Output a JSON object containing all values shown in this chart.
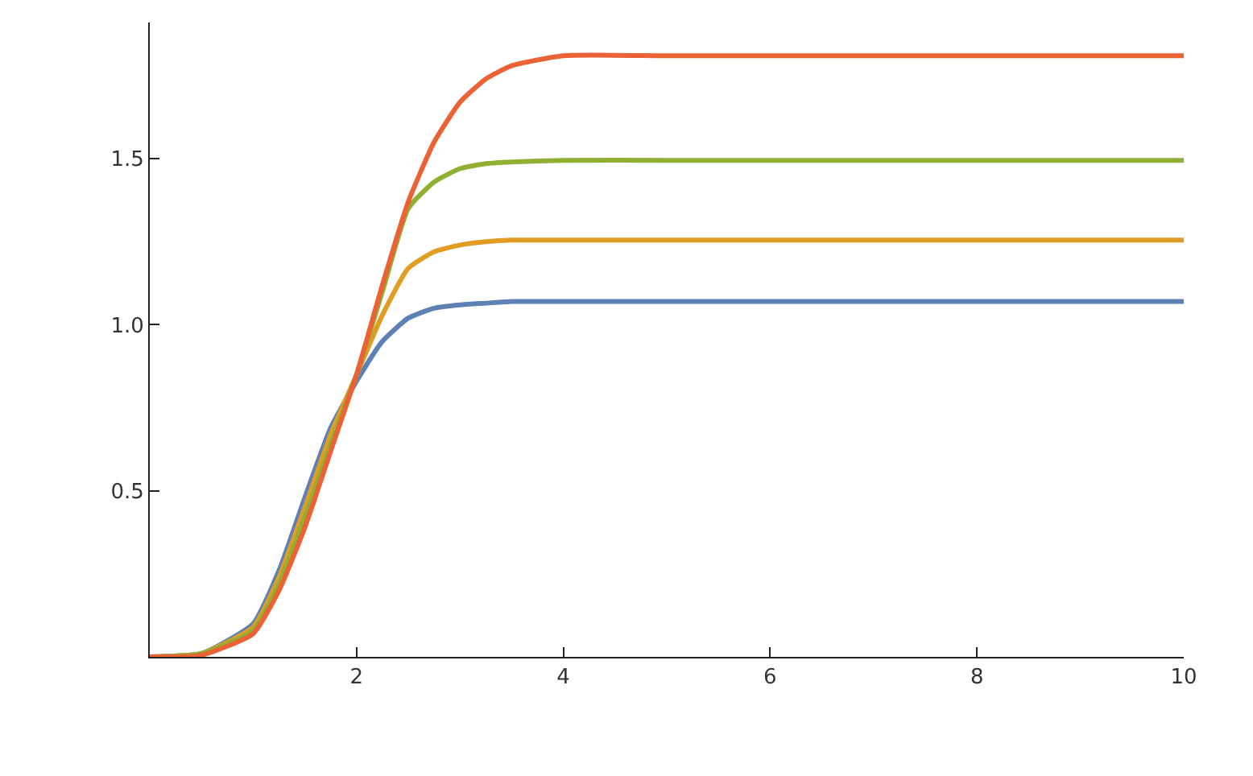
{
  "chart_data": {
    "type": "line",
    "x": [
      0,
      0.5,
      1,
      1.25,
      1.5,
      1.75,
      2,
      2.25,
      2.5,
      2.75,
      3,
      3.25,
      3.5,
      4,
      5,
      6,
      8,
      10
    ],
    "series": [
      {
        "color": "#5e81b5",
        "values": [
          0,
          0.01,
          0.1,
          0.26,
          0.48,
          0.69,
          0.83,
          0.95,
          1.02,
          1.05,
          1.06,
          1.065,
          1.07,
          1.07,
          1.07,
          1.07,
          1.07,
          1.07
        ]
      },
      {
        "color": "#e19c24",
        "values": [
          0,
          0.01,
          0.09,
          0.24,
          0.45,
          0.67,
          0.85,
          1.03,
          1.17,
          1.22,
          1.24,
          1.25,
          1.255,
          1.255,
          1.255,
          1.255,
          1.255,
          1.255
        ]
      },
      {
        "color": "#8fb032",
        "values": [
          0,
          0.01,
          0.08,
          0.22,
          0.42,
          0.64,
          0.85,
          1.1,
          1.35,
          1.43,
          1.47,
          1.485,
          1.49,
          1.495,
          1.495,
          1.495,
          1.495,
          1.495
        ]
      },
      {
        "color": "#eb6235",
        "values": [
          0,
          0.005,
          0.07,
          0.2,
          0.39,
          0.62,
          0.85,
          1.12,
          1.37,
          1.55,
          1.67,
          1.74,
          1.78,
          1.81,
          1.81,
          1.81,
          1.81,
          1.81
        ]
      }
    ],
    "xlim": [
      0,
      10
    ],
    "ylim": [
      0,
      1.91
    ],
    "xticks": [
      {
        "value": 0,
        "label": null
      },
      2,
      4,
      6,
      8,
      10
    ],
    "yticks": [
      0.5,
      {
        "value": 1.0,
        "label": "1.0"
      },
      1.5
    ],
    "marker": "none",
    "line_style": "solid"
  }
}
